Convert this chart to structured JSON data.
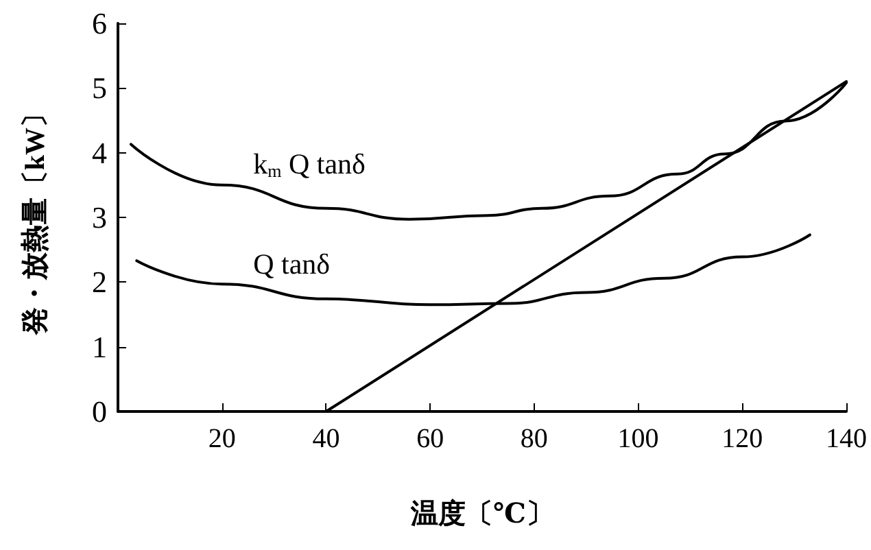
{
  "chart_data": {
    "type": "line",
    "xlabel": "温度〔℃〕",
    "ylabel": "発・放熱量〔kW〕",
    "xlim": [
      0,
      140
    ],
    "xticks": [
      20,
      40,
      60,
      80,
      100,
      120,
      140
    ],
    "ylim": [
      0,
      6
    ],
    "yticks": [
      0,
      1,
      2,
      3,
      4,
      5,
      6
    ],
    "grid": false,
    "legend": false,
    "marker": "none",
    "line_style": "solid",
    "series": [
      {
        "name": "k$_{m}$ Q tanδ",
        "color": "#000000",
        "x": [
          2.5,
          20,
          40,
          56,
          71,
          81.5,
          94.5,
          107.5,
          116.6,
          128.3,
          140
        ],
        "values": [
          4.13,
          3.5,
          3.14,
          2.97,
          3.03,
          3.14,
          3.33,
          3.67,
          3.98,
          4.49,
          5.08
        ]
      },
      {
        "name": "Q tanδ",
        "color": "#000000",
        "x": [
          3.6,
          20,
          40,
          60,
          75,
          90,
          105,
          120,
          133
        ],
        "values": [
          2.33,
          1.97,
          1.74,
          1.65,
          1.67,
          1.84,
          2.06,
          2.39,
          2.73
        ]
      },
      {
        "color": "#000000",
        "x": [
          40,
          140
        ],
        "values": [
          0,
          5.1
        ]
      }
    ]
  }
}
